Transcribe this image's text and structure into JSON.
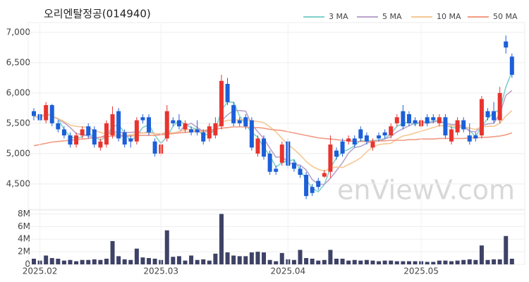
{
  "chart_data": [
    {
      "type": "candlestick",
      "title": "오리엔탈정공(014940)",
      "watermark": "enViewV.com",
      "up_color": "#e8342f",
      "down_color": "#1b5fd9",
      "ylim": [
        4080,
        7150
      ],
      "yticks": [
        {
          "value": 4500,
          "label": "4,500"
        },
        {
          "value": 5000,
          "label": "5,000"
        },
        {
          "value": 5500,
          "label": "5,500"
        },
        {
          "value": 6000,
          "label": "6,000"
        },
        {
          "value": 6500,
          "label": "6,500"
        },
        {
          "value": 7000,
          "label": "7,000"
        }
      ],
      "grid": true,
      "open": [
        5700,
        5650,
        5550,
        5800,
        5500,
        5400,
        5300,
        5150,
        5300,
        5450,
        5400,
        5100,
        5150,
        5300,
        5700,
        5350,
        5250,
        5200,
        5600,
        5600,
        5200,
        5000,
        5250,
        5550,
        5550,
        5400,
        5400,
        5400,
        5350,
        5250,
        5300,
        5450,
        6150,
        5800,
        5550,
        5600,
        5550,
        5000,
        5250,
        5000,
        4750,
        4850,
        5200,
        4850,
        4750,
        4650,
        4450,
        4550,
        4620,
        4700,
        5050,
        5200,
        5200,
        5250,
        5400,
        5300,
        5100,
        5300,
        5350,
        5300,
        5500,
        5700,
        5650,
        5550,
        5450,
        5600,
        5600,
        5500,
        5600,
        5200,
        5350,
        5550,
        5300,
        5300,
        5300,
        5700,
        5700,
        5550,
        6850,
        6600
      ],
      "high": [
        5750,
        5700,
        5850,
        5820,
        5550,
        5450,
        5350,
        5350,
        5450,
        5500,
        5450,
        5250,
        5550,
        5780,
        5750,
        5400,
        5300,
        5600,
        5650,
        5650,
        5250,
        5200,
        5800,
        5600,
        5650,
        5550,
        5450,
        5550,
        5400,
        5500,
        5600,
        6300,
        6250,
        5850,
        5600,
        5650,
        5600,
        5300,
        5300,
        5050,
        4800,
        5200,
        5250,
        4900,
        4800,
        4700,
        4500,
        4600,
        4730,
        5300,
        5100,
        5250,
        5300,
        5300,
        5450,
        5350,
        5250,
        5350,
        5400,
        5500,
        5650,
        5800,
        5700,
        5600,
        5600,
        5650,
        5650,
        5650,
        5650,
        5450,
        5600,
        5600,
        5500,
        5350,
        5950,
        5750,
        5850,
        6100,
        6950,
        6650
      ],
      "low": [
        5550,
        5500,
        5500,
        5450,
        5350,
        5250,
        5100,
        5100,
        5250,
        5250,
        5100,
        5050,
        5100,
        5250,
        5200,
        5100,
        5100,
        5150,
        5500,
        5300,
        4950,
        4950,
        5200,
        5450,
        5400,
        5350,
        5300,
        5300,
        5150,
        5200,
        5250,
        5400,
        5800,
        5450,
        5450,
        5400,
        5050,
        4950,
        4900,
        4650,
        4650,
        4800,
        4750,
        4700,
        4600,
        4250,
        4300,
        4400,
        4600,
        4600,
        4900,
        4950,
        5150,
        5100,
        5200,
        5150,
        5050,
        5200,
        5250,
        5250,
        5450,
        5400,
        5450,
        5450,
        5400,
        5450,
        5500,
        5450,
        5250,
        5150,
        5300,
        5350,
        5150,
        5200,
        5250,
        5550,
        5500,
        5500,
        6650,
        6250
      ],
      "close": [
        5620,
        5550,
        5800,
        5500,
        5400,
        5300,
        5150,
        5300,
        5400,
        5300,
        5150,
        5200,
        5500,
        5650,
        5250,
        5150,
        5200,
        5550,
        5550,
        5350,
        5000,
        5150,
        5700,
        5500,
        5450,
        5500,
        5350,
        5350,
        5200,
        5450,
        5500,
        6200,
        5850,
        5500,
        5500,
        5450,
        5100,
        5250,
        4950,
        4700,
        4700,
        5150,
        4800,
        4750,
        4650,
        4300,
        4350,
        4450,
        4680,
        5150,
        4950,
        5000,
        5250,
        5150,
        5250,
        5200,
        5200,
        5250,
        5300,
        5450,
        5600,
        5450,
        5500,
        5500,
        5550,
        5500,
        5550,
        5600,
        5300,
        5400,
        5550,
        5400,
        5200,
        5250,
        5900,
        5600,
        5550,
        6000,
        6750,
        6300
      ],
      "series": [
        {
          "name": "3 MA",
          "color": "#7fd1cc",
          "values": [
            5620,
            5590,
            5660,
            5620,
            5570,
            5400,
            5280,
            5250,
            5280,
            5330,
            5280,
            5220,
            5280,
            5450,
            5470,
            5350,
            5200,
            5300,
            5430,
            5480,
            5300,
            5170,
            5280,
            5450,
            5550,
            5480,
            5430,
            5400,
            5300,
            5330,
            5380,
            5720,
            5850,
            5850,
            5620,
            5480,
            5350,
            5270,
            5100,
            4970,
            4780,
            4850,
            4880,
            4900,
            4730,
            4570,
            4430,
            4370,
            4490,
            4760,
            4930,
            5030,
            5070,
            5130,
            5220,
            5200,
            5220,
            5220,
            5250,
            5330,
            5450,
            5500,
            5520,
            5480,
            5520,
            5520,
            5530,
            5550,
            5480,
            5430,
            5420,
            5450,
            5380,
            5280,
            5450,
            5580,
            5680,
            5720,
            6100,
            6350
          ]
        },
        {
          "name": "5 MA",
          "color": "#b9a3c9",
          "values": [
            5620,
            5590,
            5660,
            5620,
            5570,
            5510,
            5430,
            5330,
            5310,
            5290,
            5260,
            5270,
            5310,
            5360,
            5350,
            5350,
            5350,
            5360,
            5340,
            5360,
            5330,
            5320,
            5350,
            5340,
            5360,
            5460,
            5500,
            5430,
            5370,
            5370,
            5370,
            5540,
            5640,
            5710,
            5710,
            5700,
            5480,
            5360,
            5250,
            5090,
            4940,
            4950,
            4860,
            4820,
            4810,
            4730,
            4570,
            4500,
            4490,
            4590,
            4720,
            4850,
            5010,
            5100,
            5120,
            5170,
            5210,
            5210,
            5240,
            5280,
            5360,
            5410,
            5460,
            5500,
            5520,
            5500,
            5520,
            5540,
            5500,
            5480,
            5480,
            5450,
            5370,
            5360,
            5460,
            5490,
            5500,
            5660,
            5960,
            6040
          ]
        },
        {
          "name": "10 MA",
          "color": "#f5c794",
          "values": [
            5620,
            5600,
            5650,
            5620,
            5580,
            5530,
            5470,
            5450,
            5440,
            5430,
            5380,
            5350,
            5320,
            5330,
            5310,
            5300,
            5310,
            5330,
            5340,
            5340,
            5330,
            5330,
            5350,
            5340,
            5360,
            5390,
            5400,
            5380,
            5350,
            5360,
            5410,
            5520,
            5550,
            5550,
            5560,
            5560,
            5540,
            5530,
            5510,
            5440,
            5360,
            5250,
            5150,
            5070,
            4980,
            4870,
            4790,
            4740,
            4710,
            4760,
            4780,
            4770,
            4820,
            4870,
            4930,
            5030,
            5110,
            5150,
            5160,
            5170,
            5240,
            5290,
            5310,
            5340,
            5370,
            5400,
            5430,
            5460,
            5460,
            5460,
            5450,
            5450,
            5420,
            5400,
            5440,
            5450,
            5450,
            5500,
            5620,
            5710
          ]
        },
        {
          "name": "50 MA",
          "color": "#f29a82",
          "values": [
            5130,
            5150,
            5170,
            5190,
            5200,
            5210,
            5220,
            5230,
            5240,
            5250,
            5260,
            5270,
            5280,
            5290,
            5290,
            5290,
            5290,
            5300,
            5300,
            5300,
            5300,
            5310,
            5320,
            5330,
            5340,
            5350,
            5360,
            5370,
            5380,
            5390,
            5400,
            5420,
            5430,
            5440,
            5440,
            5440,
            5430,
            5430,
            5420,
            5400,
            5390,
            5380,
            5360,
            5340,
            5320,
            5300,
            5280,
            5260,
            5250,
            5240,
            5230,
            5220,
            5210,
            5200,
            5200,
            5200,
            5200,
            5210,
            5210,
            5220,
            5220,
            5220,
            5230,
            5230,
            5240,
            5240,
            5240,
            5250,
            5250,
            5250,
            5250,
            5250,
            5260,
            5260,
            5270,
            5270,
            5280,
            5290,
            5310,
            5340
          ]
        }
      ]
    },
    {
      "type": "bar",
      "color": "#3e4266",
      "categories": [
        null,
        "2025.02",
        null,
        null,
        null,
        null,
        null,
        null,
        null,
        null,
        null,
        null,
        null,
        null,
        null,
        null,
        null,
        null,
        null,
        null,
        null,
        "2025.03",
        null,
        null,
        null,
        null,
        null,
        null,
        null,
        null,
        null,
        null,
        null,
        null,
        null,
        null,
        null,
        null,
        null,
        null,
        null,
        null,
        "2025.04",
        null,
        null,
        null,
        null,
        null,
        null,
        null,
        null,
        null,
        null,
        null,
        null,
        null,
        null,
        null,
        null,
        null,
        null,
        null,
        null,
        null,
        "2025.05",
        null,
        null,
        null,
        null,
        null,
        null,
        null,
        null,
        null,
        null,
        null,
        null,
        null,
        null,
        null
      ],
      "values": [
        900000,
        600000,
        1400000,
        1000000,
        900000,
        600000,
        700000,
        500000,
        700000,
        700000,
        800000,
        700000,
        900000,
        3700000,
        1300000,
        800000,
        700000,
        2500000,
        1100000,
        1000000,
        900000,
        700000,
        5400000,
        1200000,
        1300000,
        600000,
        1400000,
        700000,
        800000,
        600000,
        1700000,
        8000000,
        1900000,
        1400000,
        1300000,
        1300000,
        1900000,
        2000000,
        1900000,
        700000,
        500000,
        1800000,
        800000,
        700000,
        2300000,
        1000000,
        900000,
        600000,
        700000,
        2300000,
        900000,
        900000,
        600000,
        700000,
        600000,
        700000,
        600000,
        500000,
        600000,
        600000,
        500000,
        500000,
        500000,
        500000,
        500000,
        400000,
        400000,
        600000,
        600000,
        500000,
        600000,
        700000,
        800000,
        700000,
        3000000,
        700000,
        800000,
        800000,
        4500000,
        900000
      ],
      "ylim": [
        0,
        8500000
      ],
      "yticks": [
        0,
        {
          "value": 2000000,
          "label": "2M"
        },
        {
          "value": 4000000,
          "label": "4M"
        },
        {
          "value": 6000000,
          "label": "6M"
        },
        {
          "value": 8000000,
          "label": "8M"
        }
      ]
    }
  ]
}
